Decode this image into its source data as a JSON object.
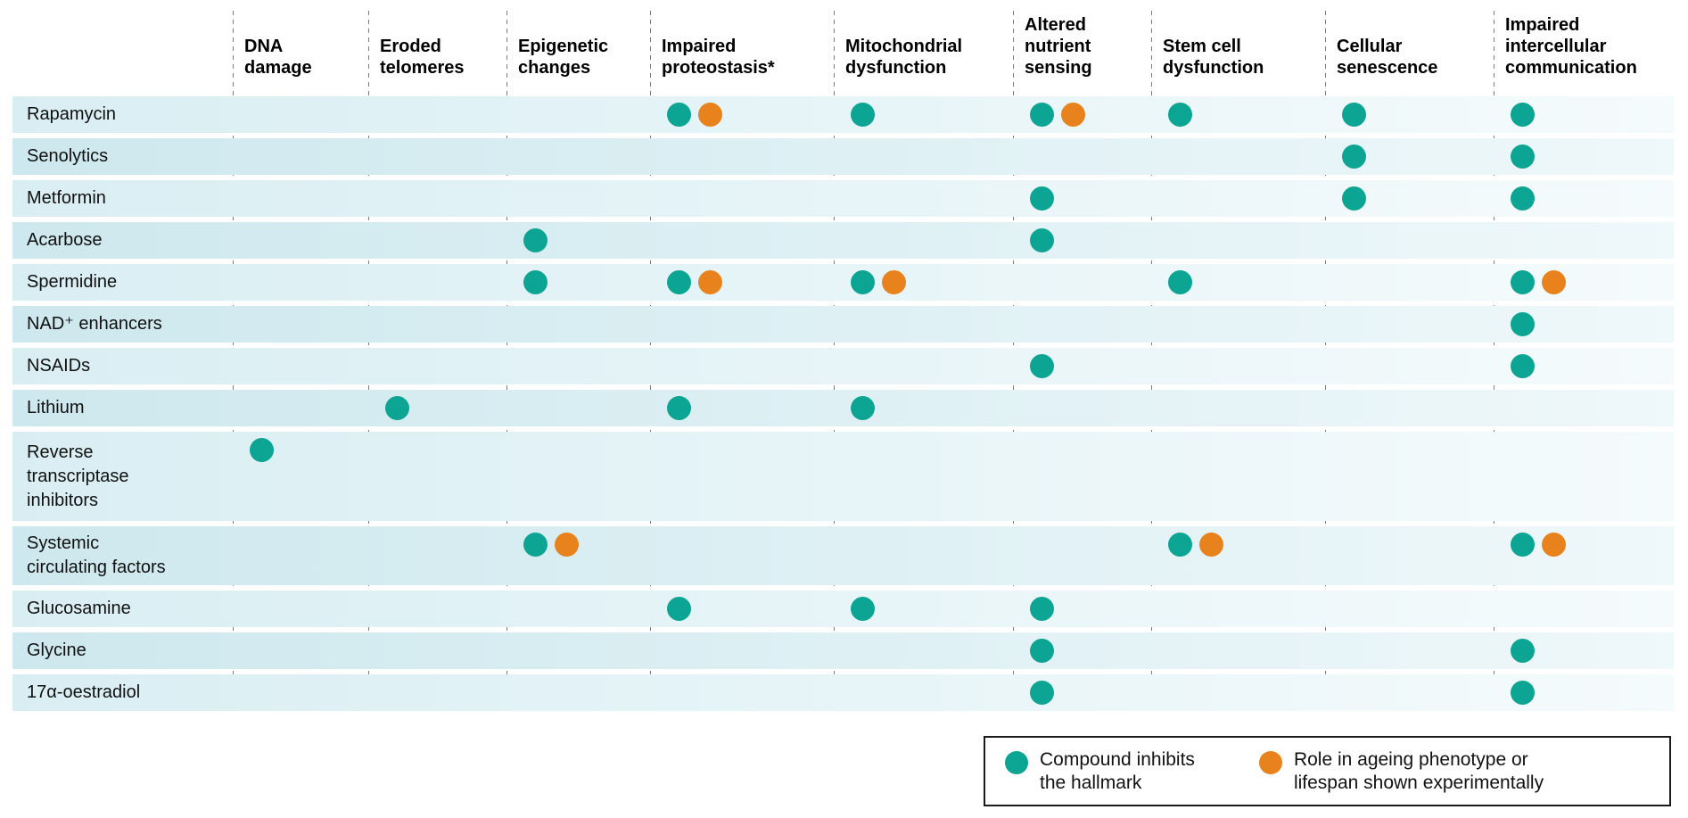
{
  "chart_data": {
    "type": "matrix",
    "description": "Dot matrix of compounds (rows) versus hallmarks of ageing (columns)",
    "marker_types": {
      "inhibits": {
        "label": "Compound inhibits\nthe hallmark",
        "color": "#0ca493"
      },
      "experimental": {
        "label": "Role in ageing phenotype or\nlifespan shown experimentally",
        "color": "#e8821c"
      }
    },
    "columns": [
      "DNA\ndamage",
      "Eroded\ntelomeres",
      "Epigenetic\nchanges",
      "Impaired\nproteostasis*",
      "Mitochondrial\ndysfunction",
      "Altered\nnutrient\nsensing",
      "Stem cell\ndysfunction",
      "Cellular\nsenescence",
      "Impaired\nintercellular\ncommunication"
    ],
    "rows": [
      {
        "label": "Rapamycin",
        "marks": [
          {
            "col": 3,
            "markers": [
              "inhibits",
              "experimental"
            ]
          },
          {
            "col": 4,
            "markers": [
              "inhibits"
            ]
          },
          {
            "col": 5,
            "markers": [
              "inhibits",
              "experimental"
            ]
          },
          {
            "col": 6,
            "markers": [
              "inhibits"
            ]
          },
          {
            "col": 7,
            "markers": [
              "inhibits"
            ]
          },
          {
            "col": 8,
            "markers": [
              "inhibits"
            ]
          }
        ]
      },
      {
        "label": "Senolytics",
        "marks": [
          {
            "col": 7,
            "markers": [
              "inhibits"
            ]
          },
          {
            "col": 8,
            "markers": [
              "inhibits"
            ]
          }
        ]
      },
      {
        "label": "Metformin",
        "marks": [
          {
            "col": 5,
            "markers": [
              "inhibits"
            ]
          },
          {
            "col": 7,
            "markers": [
              "inhibits"
            ]
          },
          {
            "col": 8,
            "markers": [
              "inhibits"
            ]
          }
        ]
      },
      {
        "label": "Acarbose",
        "marks": [
          {
            "col": 2,
            "markers": [
              "inhibits"
            ]
          },
          {
            "col": 5,
            "markers": [
              "inhibits"
            ]
          }
        ]
      },
      {
        "label": "Spermidine",
        "marks": [
          {
            "col": 2,
            "markers": [
              "inhibits"
            ]
          },
          {
            "col": 3,
            "markers": [
              "inhibits",
              "experimental"
            ]
          },
          {
            "col": 4,
            "markers": [
              "inhibits",
              "experimental"
            ]
          },
          {
            "col": 6,
            "markers": [
              "inhibits"
            ]
          },
          {
            "col": 8,
            "markers": [
              "inhibits",
              "experimental"
            ]
          }
        ]
      },
      {
        "label": "NAD⁺ enhancers",
        "marks": [
          {
            "col": 8,
            "markers": [
              "inhibits"
            ]
          }
        ]
      },
      {
        "label": "NSAIDs",
        "marks": [
          {
            "col": 5,
            "markers": [
              "inhibits"
            ]
          },
          {
            "col": 8,
            "markers": [
              "inhibits"
            ]
          }
        ]
      },
      {
        "label": "Lithium",
        "marks": [
          {
            "col": 1,
            "markers": [
              "inhibits"
            ]
          },
          {
            "col": 3,
            "markers": [
              "inhibits"
            ]
          },
          {
            "col": 4,
            "markers": [
              "inhibits"
            ]
          }
        ]
      },
      {
        "label": "Reverse\ntranscriptase\ninhibitors",
        "marks": [
          {
            "col": 0,
            "markers": [
              "inhibits"
            ]
          }
        ]
      },
      {
        "label": "Systemic\ncirculating factors",
        "marks": [
          {
            "col": 2,
            "markers": [
              "inhibits",
              "experimental"
            ]
          },
          {
            "col": 6,
            "markers": [
              "inhibits",
              "experimental"
            ]
          },
          {
            "col": 8,
            "markers": [
              "inhibits",
              "experimental"
            ]
          }
        ]
      },
      {
        "label": "Glucosamine",
        "marks": [
          {
            "col": 3,
            "markers": [
              "inhibits"
            ]
          },
          {
            "col": 4,
            "markers": [
              "inhibits"
            ]
          },
          {
            "col": 5,
            "markers": [
              "inhibits"
            ]
          }
        ]
      },
      {
        "label": "Glycine",
        "marks": [
          {
            "col": 5,
            "markers": [
              "inhibits"
            ]
          },
          {
            "col": 8,
            "markers": [
              "inhibits"
            ]
          }
        ]
      },
      {
        "label": "17α-oestradiol",
        "marks": [
          {
            "col": 5,
            "markers": [
              "inhibits"
            ]
          },
          {
            "col": 8,
            "markers": [
              "inhibits"
            ]
          }
        ]
      }
    ],
    "legend": [
      {
        "type": "inhibits",
        "label": "Compound inhibits\nthe hallmark"
      },
      {
        "type": "experimental",
        "label": "Role in ageing phenotype or\nlifespan shown experimentally"
      }
    ],
    "legend_position": "bottom-right",
    "grid": "dashed-vertical-only"
  }
}
